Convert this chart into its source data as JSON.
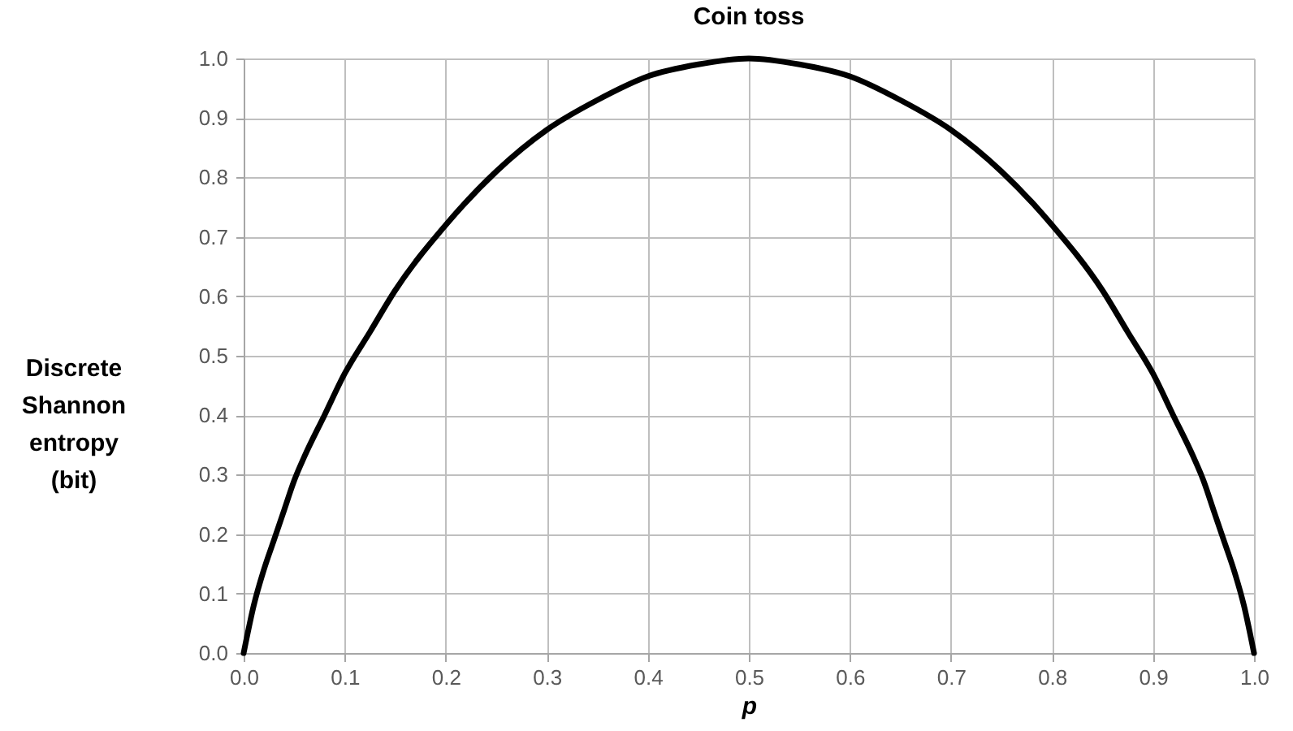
{
  "chart_data": {
    "type": "line",
    "title": "Coin toss",
    "xlabel": "p",
    "ylabel": "Discrete Shannon entropy (bit)",
    "x": [
      0,
      0.01,
      0.02,
      0.03,
      0.04,
      0.05,
      0.06,
      0.08,
      0.1,
      0.125,
      0.15,
      0.2,
      0.25,
      0.3,
      0.35,
      0.4,
      0.45,
      0.5,
      0.55,
      0.6,
      0.65,
      0.7,
      0.75,
      0.8,
      0.85,
      0.875,
      0.9,
      0.92,
      0.94,
      0.95,
      0.96,
      0.97,
      0.98,
      0.99,
      1
    ],
    "series": [
      {
        "color": "#000000",
        "values": [
          0,
          0.08,
          0.14,
          0.19,
          0.24,
          0.29,
          0.33,
          0.4,
          0.47,
          0.54,
          0.61,
          0.72,
          0.81,
          0.88,
          0.93,
          0.97,
          0.99,
          1.0,
          0.99,
          0.97,
          0.93,
          0.88,
          0.81,
          0.72,
          0.61,
          0.54,
          0.47,
          0.4,
          0.33,
          0.29,
          0.24,
          0.19,
          0.14,
          0.08,
          0
        ]
      }
    ],
    "xlim": [
      0,
      1
    ],
    "ylim": [
      0,
      1
    ],
    "xticks": [
      {
        "value": 0,
        "label": "0.0"
      },
      0.1,
      0.2,
      0.3,
      0.4,
      0.5,
      0.6,
      0.7,
      0.8,
      0.9,
      {
        "value": 1,
        "label": "1.0"
      }
    ],
    "yticks": [
      {
        "value": 0,
        "label": "0.0"
      },
      0.1,
      0.2,
      0.3,
      0.4,
      0.5,
      0.6,
      0.7,
      0.8,
      0.9,
      {
        "value": 1,
        "label": "1.0"
      }
    ],
    "grid": true,
    "line_style": "solid"
  }
}
